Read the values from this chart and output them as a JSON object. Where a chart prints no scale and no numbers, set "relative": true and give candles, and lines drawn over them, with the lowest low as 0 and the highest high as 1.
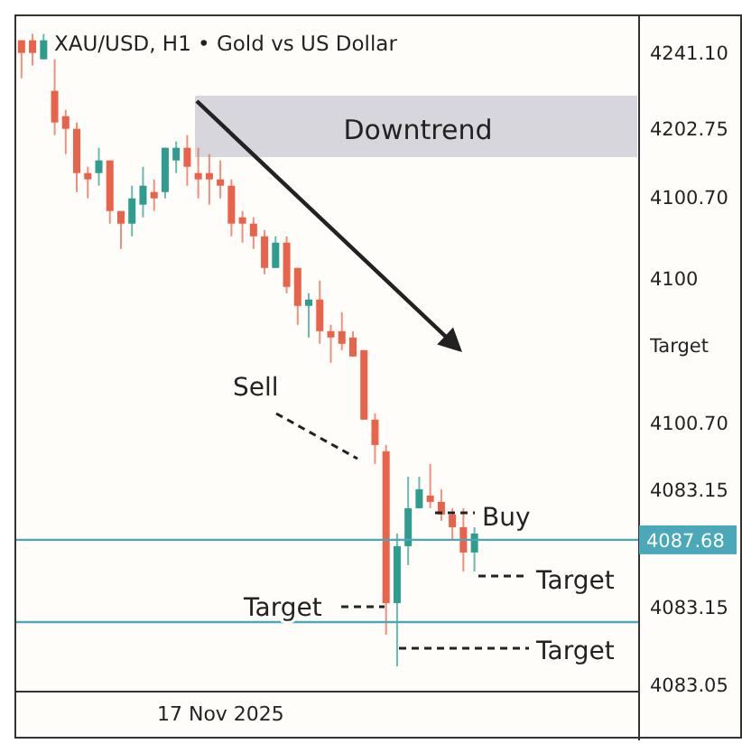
{
  "chart_data": {
    "type": "candlestick",
    "title": "XAU/USD, H1 • Gold vs US Dollar",
    "relative": true,
    "categories": [
      null,
      null,
      null,
      null,
      null,
      null,
      null,
      null,
      null,
      null,
      null,
      null,
      null,
      null,
      null,
      null,
      null,
      null,
      "17 Nov 2025",
      null,
      null,
      null,
      null,
      null,
      null,
      null,
      null,
      null,
      null,
      null,
      null,
      null,
      null,
      null,
      null,
      null,
      null,
      null,
      null,
      null,
      null,
      null
    ],
    "ohlc": [
      [
        0.99,
        0.99,
        0.93,
        0.97
      ],
      [
        0.99,
        1.0,
        0.95,
        0.97
      ],
      [
        0.96,
        1.0,
        0.96,
        0.99
      ],
      [
        0.91,
        0.96,
        0.84,
        0.86
      ],
      [
        0.87,
        0.88,
        0.81,
        0.85
      ],
      [
        0.85,
        0.86,
        0.75,
        0.78
      ],
      [
        0.78,
        0.79,
        0.74,
        0.77
      ],
      [
        0.78,
        0.82,
        0.76,
        0.8
      ],
      [
        0.8,
        0.8,
        0.7,
        0.72
      ],
      [
        0.72,
        0.72,
        0.66,
        0.7
      ],
      [
        0.7,
        0.76,
        0.68,
        0.74
      ],
      [
        0.73,
        0.79,
        0.71,
        0.76
      ],
      [
        0.75,
        0.77,
        0.72,
        0.74
      ],
      [
        0.75,
        0.82,
        0.74,
        0.82
      ],
      [
        0.8,
        0.83,
        0.78,
        0.82
      ],
      [
        0.82,
        0.84,
        0.76,
        0.79
      ],
      [
        0.78,
        0.82,
        0.74,
        0.77
      ],
      [
        0.78,
        0.81,
        0.73,
        0.77
      ],
      [
        0.77,
        0.8,
        0.74,
        0.76
      ],
      [
        0.76,
        0.77,
        0.68,
        0.7
      ],
      [
        0.71,
        0.72,
        0.67,
        0.7
      ],
      [
        0.7,
        0.71,
        0.66,
        0.68
      ],
      [
        0.68,
        0.69,
        0.62,
        0.63
      ],
      [
        0.63,
        0.68,
        0.63,
        0.67
      ],
      [
        0.67,
        0.68,
        0.59,
        0.6
      ],
      [
        0.63,
        0.63,
        0.54,
        0.57
      ],
      [
        0.57,
        0.59,
        0.52,
        0.58
      ],
      [
        0.58,
        0.61,
        0.51,
        0.53
      ],
      [
        0.53,
        0.54,
        0.48,
        0.52
      ],
      [
        0.53,
        0.56,
        0.5,
        0.51
      ],
      [
        0.52,
        0.53,
        0.49,
        0.49
      ],
      [
        0.5,
        0.5,
        0.39,
        0.39
      ],
      [
        0.39,
        0.4,
        0.32,
        0.35
      ],
      [
        0.34,
        0.35,
        0.05,
        0.1
      ],
      [
        0.1,
        0.21,
        0.0,
        0.19
      ],
      [
        0.19,
        0.3,
        0.16,
        0.25
      ],
      [
        0.25,
        0.3,
        0.25,
        0.28
      ],
      [
        0.27,
        0.32,
        0.25,
        0.26
      ],
      [
        0.26,
        0.28,
        0.23,
        0.24
      ],
      [
        0.24,
        0.25,
        0.2,
        0.22
      ],
      [
        0.22,
        0.25,
        0.15,
        0.18
      ],
      [
        0.18,
        0.22,
        0.15,
        0.21
      ]
    ],
    "colors": [
      "#e9634a",
      "#e9634a",
      "#2e9c8e",
      "#e9634a",
      "#e9634a",
      "#e9634a",
      "#e9634a",
      "#2e9c8e",
      "#e9634a",
      "#e9634a",
      "#2e9c8e",
      "#2e9c8e",
      "#e9634a",
      "#2e9c8e",
      "#2e9c8e",
      "#e9634a",
      "#e9634a",
      "#e9634a",
      "#e9634a",
      "#e9634a",
      "#e9634a",
      "#e9634a",
      "#e9634a",
      "#2e9c8e",
      "#e9634a",
      "#e9634a",
      "#2e9c8e",
      "#e9634a",
      "#e9634a",
      "#e9634a",
      "#e9634a",
      "#e9634a",
      "#e9634a",
      "#e9634a",
      "#2e9c8e",
      "#2e9c8e",
      "#2e9c8e",
      "#e9634a",
      "#e9634a",
      "#e9634a",
      "#e9634a",
      "#2e9c8e"
    ],
    "ref_lines": [
      {
        "axis": "y",
        "value": 0.2,
        "color": "#4aa8b8"
      },
      {
        "axis": "y",
        "value": 0.07,
        "color": "#4aa8b8"
      }
    ],
    "annotations": [
      "Downtrend",
      "Sell",
      "Buy",
      "Target",
      "Target",
      "Target",
      "4087.68",
      "4241.10",
      "4202.75",
      "4100.70",
      "4100",
      "Target",
      "4100.70",
      "4083.15",
      "4083.15",
      "4083.05"
    ]
  }
}
